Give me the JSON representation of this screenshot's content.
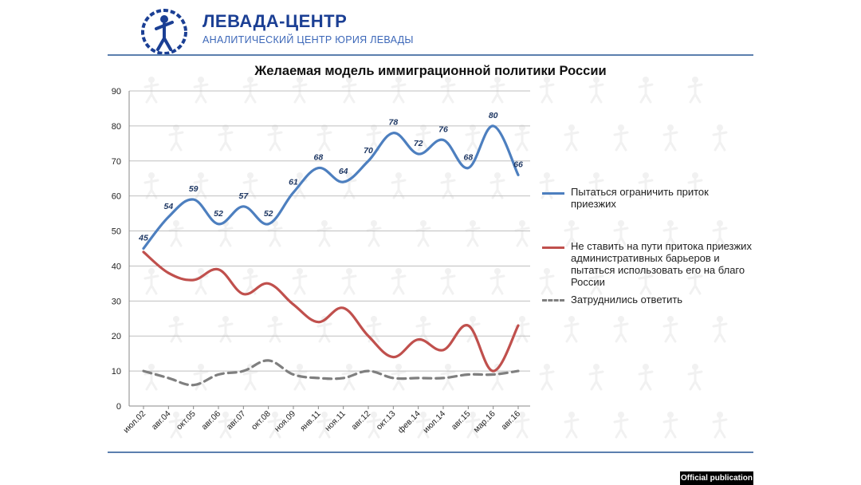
{
  "brand": {
    "name": "ЛЕВАДА-ЦЕНТР",
    "subtitle": "АНАЛИТИЧЕСКИЙ ЦЕНТР ЮРИЯ ЛЕВАДЫ",
    "logo_icon": "levada-logo-icon"
  },
  "colors": {
    "series1": "#4d7fbf",
    "series2": "#c0504d",
    "series3": "#7f7f7f",
    "brand": "#1b3f94",
    "rule": "#5b7fae"
  },
  "badge": "Official publication",
  "chart_data": {
    "type": "line",
    "title": "Желаемая модель иммиграционной политики России",
    "xlabel": "",
    "ylabel": "",
    "ylim": [
      0,
      90
    ],
    "yticks": [
      0,
      10,
      20,
      30,
      40,
      50,
      60,
      70,
      80,
      90
    ],
    "grid": true,
    "legend_position": "right",
    "categories": [
      "июл.02",
      "авг.04",
      "окт.05",
      "авг.06",
      "авг.07",
      "окт.08",
      "ноя.09",
      "янв.11",
      "ноя.11",
      "авг.12",
      "окт.13",
      "фев.14",
      "июл.14",
      "авг.15",
      "мар.16",
      "авг.16"
    ],
    "series": [
      {
        "name": "Пытаться ограничить приток приезжих",
        "style": "solid",
        "labeled": true,
        "values": [
          45,
          54,
          59,
          52,
          57,
          52,
          61,
          68,
          64,
          70,
          78,
          72,
          76,
          68,
          80,
          66
        ]
      },
      {
        "name": "Не ставить на пути притока приезжих административных барьеров и пытаться использовать его на благо России",
        "style": "solid",
        "labeled": false,
        "values": [
          44,
          38,
          36,
          39,
          32,
          35,
          29,
          24,
          28,
          20,
          14,
          19,
          16,
          23,
          10,
          23
        ]
      },
      {
        "name": "Затруднились ответить",
        "style": "dashed",
        "labeled": false,
        "values": [
          10,
          8,
          6,
          9,
          10,
          13,
          9,
          8,
          8,
          10,
          8,
          8,
          8,
          9,
          9,
          10
        ]
      }
    ],
    "legend_labels": [
      "Пытаться ограничить приток приезжих",
      "Не ставить на пути притока приезжих административных барьеров и пытаться использовать его на благо России",
      "Затруднились ответить"
    ]
  }
}
